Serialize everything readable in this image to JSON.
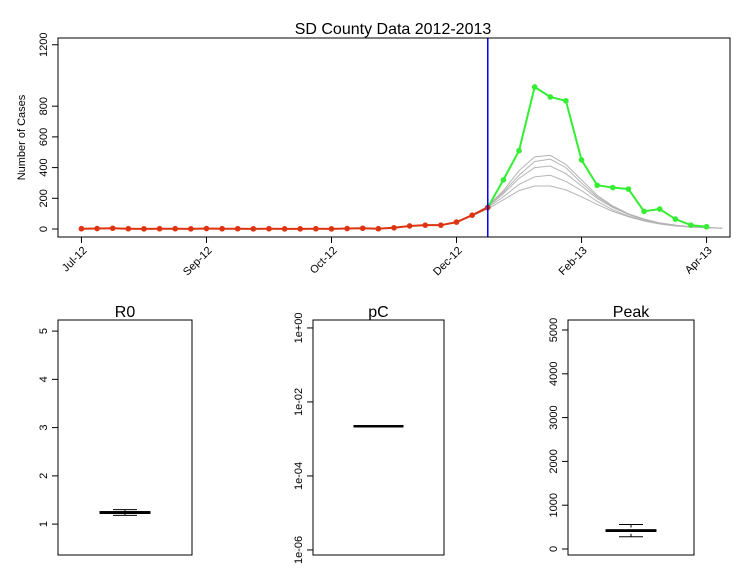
{
  "chart_data": [
    {
      "type": "line",
      "title": "SD County Data 2012-2013",
      "y_label": "Number of Cases",
      "x": [
        0,
        1,
        2,
        3,
        4,
        5,
        6,
        7,
        8,
        9,
        10,
        11,
        12,
        13,
        14,
        15,
        16,
        17,
        18,
        19,
        20,
        21,
        22,
        23,
        24,
        25,
        26,
        27,
        28,
        29,
        30,
        31,
        32,
        33,
        34,
        35,
        36,
        37,
        38,
        39,
        40,
        41
      ],
      "xlim": [
        -1.5,
        41.5
      ],
      "xticks": [
        {
          "value": 0,
          "label": "Jul-12"
        },
        {
          "value": 8,
          "label": "Sep-12"
        },
        {
          "value": 16,
          "label": "Oct-12"
        },
        {
          "value": 24,
          "label": "Dec-12"
        },
        {
          "value": 32,
          "label": "Feb-13"
        },
        {
          "value": 40,
          "label": "Apr-13"
        }
      ],
      "ylim": [
        -52,
        1244
      ],
      "yticks": [
        0,
        200,
        400,
        600,
        800,
        1200
      ],
      "vline": 26,
      "vline_color": "#0000ee",
      "series": [
        {
          "color": "#b4b4b4",
          "marker": false,
          "values": [
            null,
            null,
            null,
            null,
            null,
            null,
            null,
            null,
            null,
            null,
            null,
            null,
            null,
            null,
            null,
            null,
            null,
            null,
            null,
            null,
            null,
            null,
            null,
            null,
            45,
            90,
            150,
            250,
            380,
            470,
            480,
            420,
            320,
            220,
            150,
            100,
            65,
            40,
            25,
            15,
            10,
            6
          ]
        },
        {
          "color": "#b4b4b4",
          "marker": false,
          "values": [
            null,
            null,
            null,
            null,
            null,
            null,
            null,
            null,
            null,
            null,
            null,
            null,
            null,
            null,
            null,
            null,
            null,
            null,
            null,
            null,
            null,
            null,
            null,
            null,
            45,
            90,
            145,
            230,
            330,
            400,
            410,
            360,
            280,
            200,
            140,
            95,
            60,
            38,
            24,
            14,
            9,
            6
          ]
        },
        {
          "color": "#b4b4b4",
          "marker": false,
          "values": [
            null,
            null,
            null,
            null,
            null,
            null,
            null,
            null,
            null,
            null,
            null,
            null,
            null,
            null,
            null,
            null,
            null,
            null,
            null,
            null,
            null,
            null,
            null,
            null,
            45,
            88,
            140,
            210,
            290,
            340,
            350,
            310,
            250,
            180,
            125,
            85,
            55,
            35,
            22,
            13,
            8,
            5
          ]
        },
        {
          "color": "#b4b4b4",
          "marker": false,
          "values": [
            null,
            null,
            null,
            null,
            null,
            null,
            null,
            null,
            null,
            null,
            null,
            null,
            null,
            null,
            null,
            null,
            null,
            null,
            null,
            null,
            null,
            null,
            null,
            null,
            45,
            85,
            130,
            190,
            250,
            280,
            280,
            255,
            210,
            160,
            115,
            80,
            52,
            33,
            20,
            12,
            8,
            5
          ]
        },
        {
          "color": "#b4b4b4",
          "marker": false,
          "values": [
            null,
            null,
            null,
            null,
            null,
            null,
            null,
            null,
            null,
            null,
            null,
            null,
            null,
            null,
            null,
            null,
            null,
            null,
            null,
            null,
            null,
            null,
            null,
            null,
            45,
            90,
            148,
            240,
            350,
            440,
            455,
            400,
            300,
            210,
            145,
            98,
            62,
            39,
            24,
            14,
            9,
            6
          ]
        },
        {
          "color": "#33ee33",
          "marker": true,
          "values": [
            null,
            null,
            null,
            null,
            null,
            null,
            null,
            null,
            null,
            null,
            null,
            null,
            null,
            null,
            null,
            null,
            null,
            null,
            null,
            null,
            null,
            null,
            null,
            null,
            null,
            null,
            140,
            320,
            510,
            925,
            860,
            835,
            450,
            285,
            270,
            260,
            115,
            130,
            65,
            25,
            15,
            null
          ]
        },
        {
          "color": "#dd3311",
          "marker": true,
          "values": [
            2,
            3,
            5,
            2,
            1,
            2,
            2,
            1,
            3,
            2,
            2,
            1,
            2,
            1,
            1,
            2,
            1,
            3,
            5,
            2,
            8,
            20,
            25,
            25,
            45,
            90,
            140,
            null,
            null,
            null,
            null,
            null,
            null,
            null,
            null,
            null,
            null,
            null,
            null,
            null,
            null,
            null
          ]
        }
      ]
    },
    {
      "type": "box",
      "title": "R0",
      "ylim": [
        0.36,
        5.23
      ],
      "yticks": [
        1,
        2,
        3,
        4,
        5
      ],
      "whisker_low": 1.18,
      "q1": 1.22,
      "median": 1.24,
      "q3": 1.26,
      "whisker_high": 1.3
    },
    {
      "type": "box",
      "title": "pC",
      "log": true,
      "ylim": [
        7.3e-07,
        1.64
      ],
      "yticks": [
        {
          "value": 1,
          "label": "1e+00"
        },
        {
          "value": 0.01,
          "label": "1e-02"
        },
        {
          "value": 0.0001,
          "label": "1e-04"
        },
        {
          "value": 1e-06,
          "label": "1e-06"
        }
      ],
      "whisker_low": 0.0022,
      "q1": 0.0022,
      "median": 0.0022,
      "q3": 0.0022,
      "whisker_high": 0.0022
    },
    {
      "type": "box",
      "title": "Peak",
      "ylim": [
        -137,
        5228
      ],
      "yticks": [
        0,
        1000,
        2000,
        3000,
        4000,
        5000
      ],
      "whisker_low": 280,
      "q1": 400,
      "median": 420,
      "q3": 440,
      "whisker_high": 560
    }
  ]
}
